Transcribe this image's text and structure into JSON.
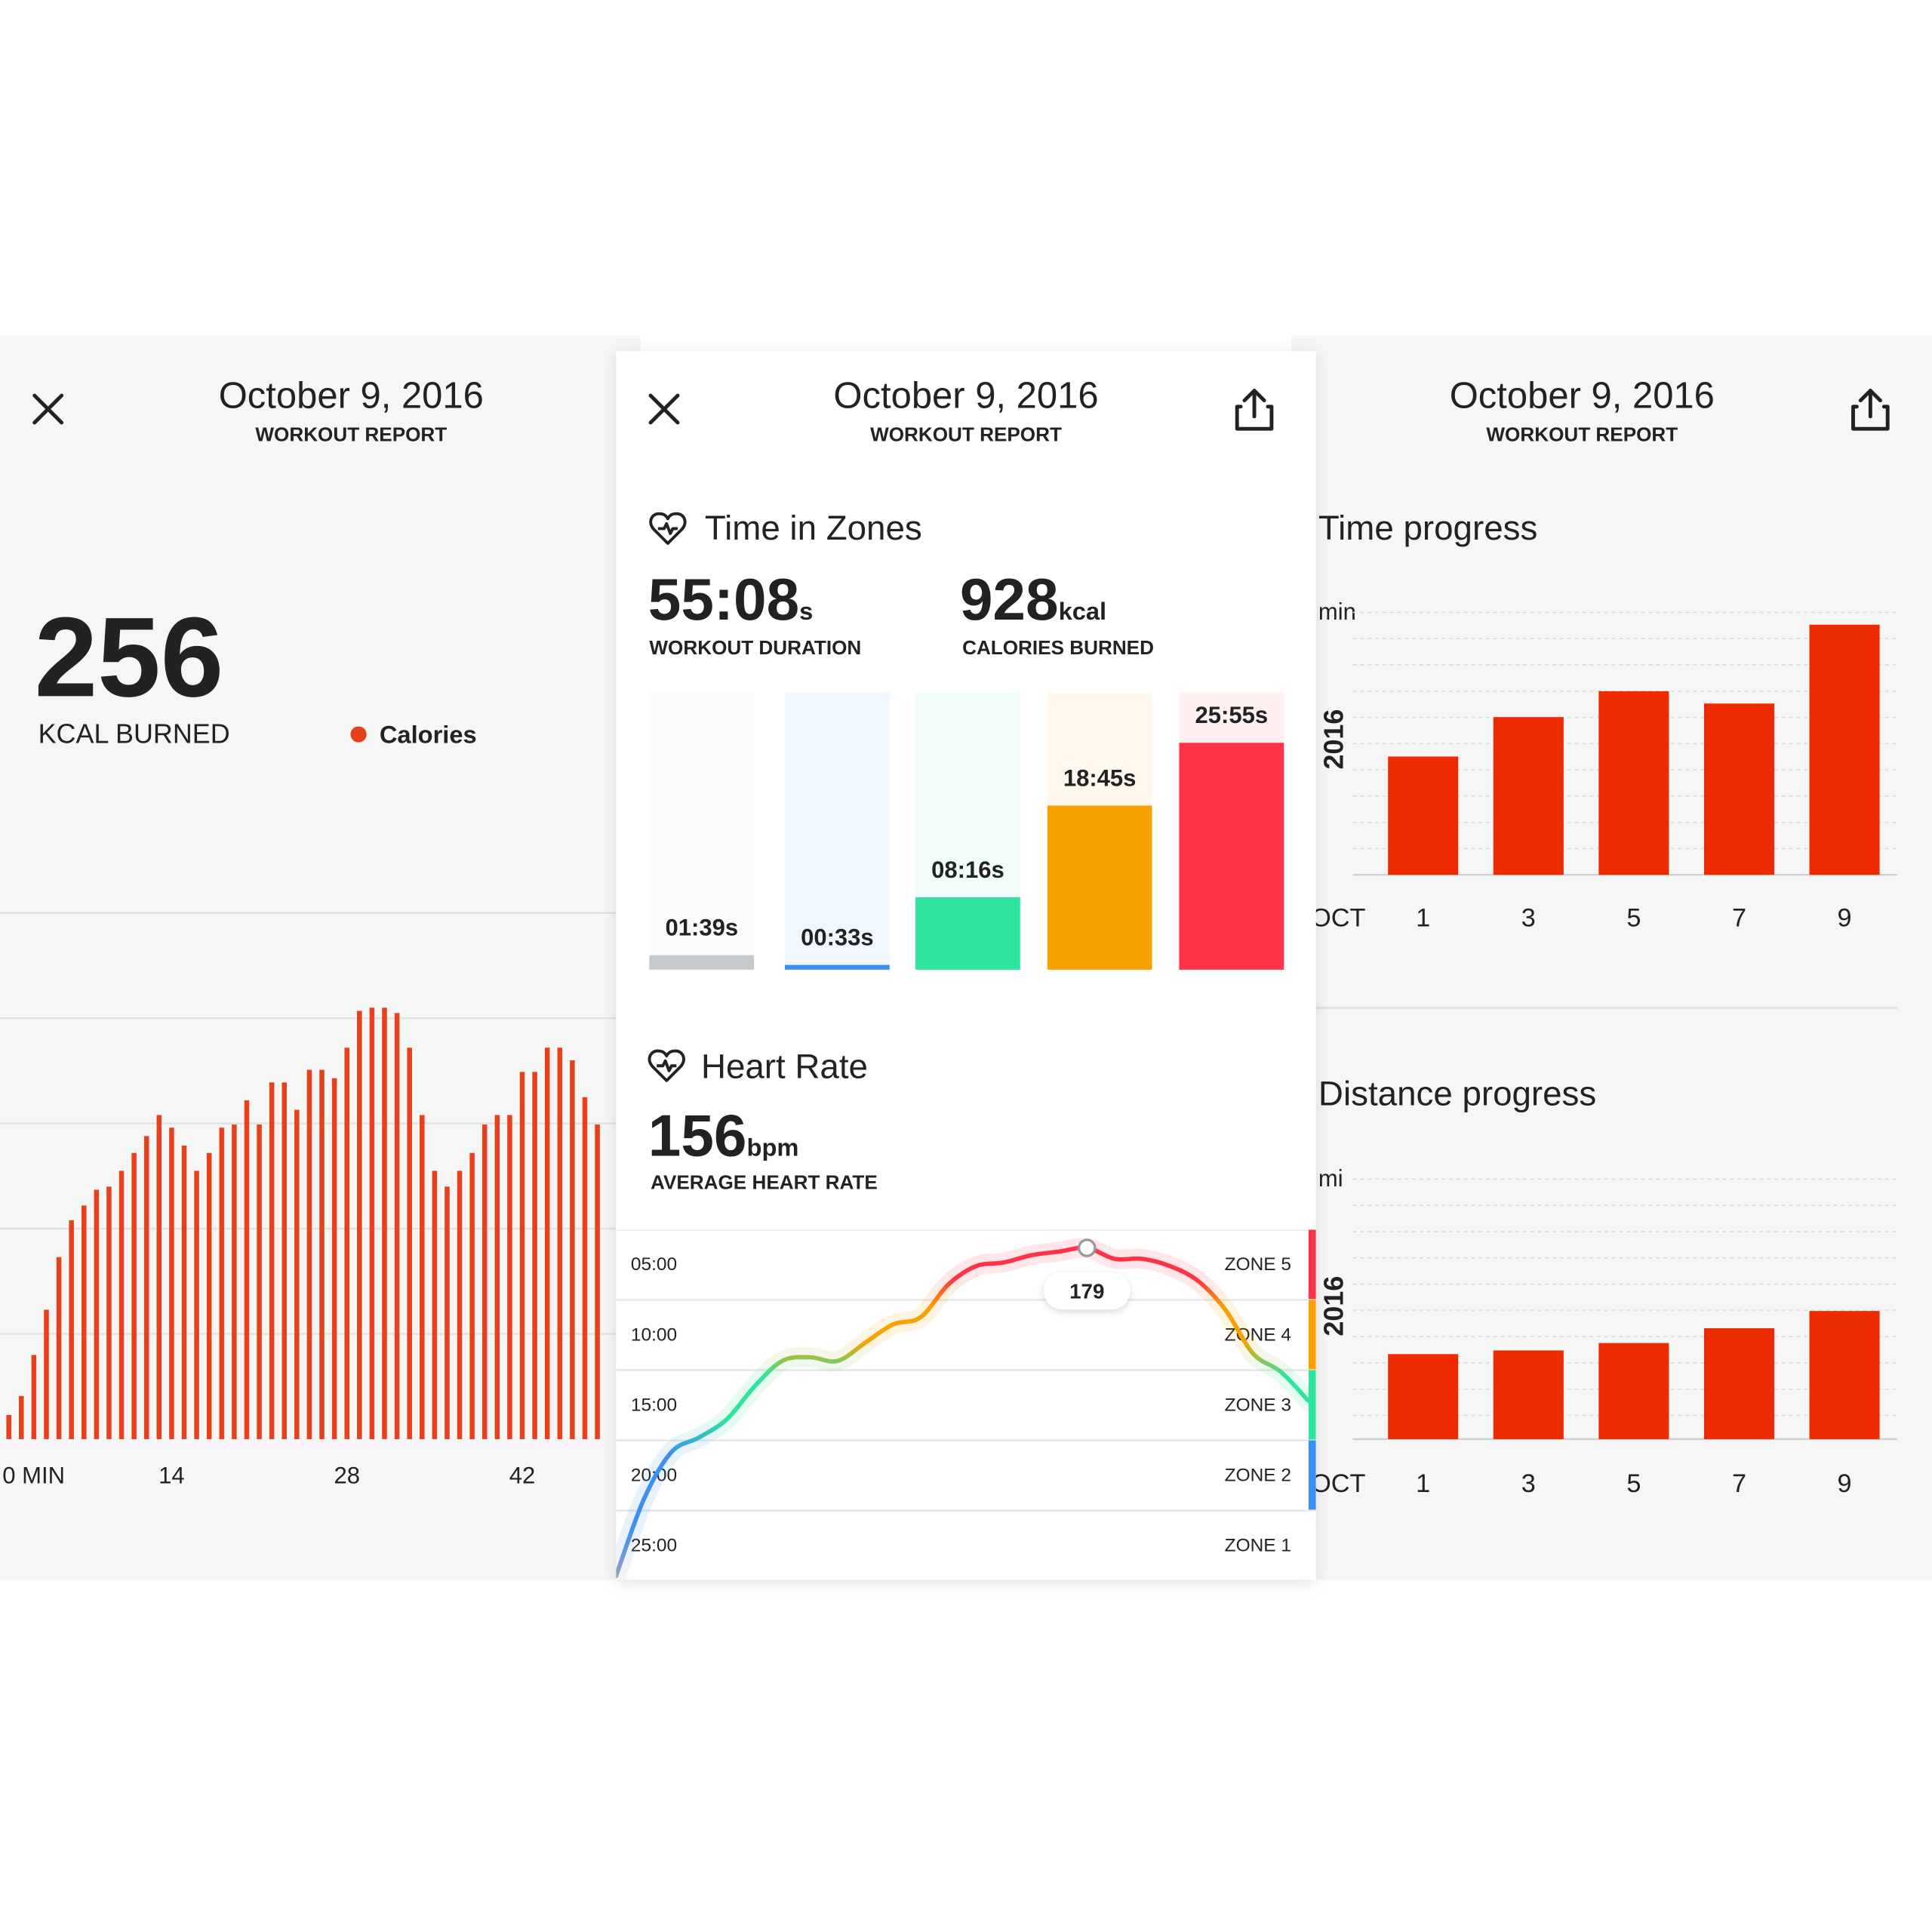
{
  "left": {
    "date": "October 9, 2016",
    "subtitle": "WORKOUT REPORT",
    "total": "256",
    "total_label": "KCAL BURNED",
    "chart": {
      "type": "bar",
      "series": [
        {
          "name": "Calories",
          "color": "#e8401c",
          "values": [
            23,
            41,
            80,
            123,
            173,
            208,
            222,
            237,
            240,
            255,
            272,
            288,
            308,
            296,
            279,
            255,
            272,
            296,
            299,
            322,
            299,
            339,
            339,
            313,
            351,
            351,
            343,
            372,
            407,
            410,
            410,
            405,
            372,
            308,
            255,
            240,
            255,
            272,
            299,
            308,
            308,
            349,
            349,
            372,
            372,
            360,
            325,
            299
          ]
        }
      ],
      "x": [
        1,
        2,
        3,
        4,
        5,
        6,
        7,
        8,
        9,
        10,
        11,
        12,
        13,
        14,
        15,
        16,
        17,
        18,
        19,
        20,
        21,
        22,
        23,
        24,
        25,
        26,
        27,
        28,
        29,
        30,
        31,
        32,
        33,
        34,
        35,
        36,
        37,
        38,
        39,
        40,
        41,
        42,
        43,
        44,
        45,
        46,
        47,
        48
      ],
      "xlim": [
        0,
        49
      ],
      "xticks": [
        {
          "value": 0,
          "label": "0 MIN"
        },
        14,
        28,
        42
      ],
      "ylim": [
        0,
        500
      ],
      "grid": [
        100,
        200,
        300,
        400,
        500
      ]
    }
  },
  "center": {
    "date": "October 9, 2016",
    "subtitle": "WORKOUT REPORT",
    "zones_title": "Time in Zones",
    "duration": {
      "value": "55:08",
      "unit": "s",
      "label": "WORKOUT DURATION"
    },
    "calories": {
      "value": "928",
      "unit": "kcal",
      "label": "CALORIES BURNED"
    },
    "zones_chart": {
      "type": "bar",
      "values": [
        99,
        33,
        496,
        1125,
        1555
      ],
      "value_labels": [
        "01:39s",
        "00:33s",
        "08:16s",
        "18:45s",
        "25:55s"
      ],
      "colors": [
        "#c6c9cd",
        "#3d8ff0",
        "#2ee59d",
        "#f7a200",
        "#ff3347"
      ],
      "label_colors": [
        "#8a8d91",
        "#3d8ff0",
        "#2ee59d",
        "#f7a200",
        "#ff3347"
      ],
      "ylim": [
        0,
        1900
      ]
    },
    "heart_title": "Heart Rate",
    "heart_rate": {
      "value": "156",
      "unit": "bpm",
      "label": "AVERAGE HEART RATE"
    },
    "heart_chart": {
      "type": "line",
      "values": [
        89,
        110,
        123,
        127,
        132,
        141,
        148,
        149,
        148,
        153,
        158,
        160,
        169,
        174,
        175,
        177,
        178,
        179,
        176,
        176,
        174,
        170,
        162,
        150,
        145,
        137
      ],
      "ylim": [
        88,
        184
      ],
      "rows": [
        {
          "time": "05:00",
          "zone": "ZONE 5",
          "color": "#ff3347"
        },
        {
          "time": "10:00",
          "zone": "ZONE 4",
          "color": "#f7a200"
        },
        {
          "time": "15:00",
          "zone": "ZONE 3",
          "color": "#2ee59d"
        },
        {
          "time": "20:00",
          "zone": "ZONE 2",
          "color": "#3d8ff0"
        },
        {
          "time": "25:00",
          "zone": "ZONE 1"
        }
      ]
    }
  },
  "right": {
    "date": "October 9, 2016",
    "subtitle": "WORKOUT REPORT",
    "charts": [
      {
        "type": "bar",
        "title": "Time progress",
        "unit": "min",
        "year": "2016",
        "month": "OCT",
        "categories": [
          "1",
          "3",
          "5",
          "7",
          "9"
        ],
        "values": [
          96,
          128,
          149,
          139,
          203
        ],
        "color": "#ee2a00",
        "ylim": [
          0,
          213
        ]
      },
      {
        "type": "bar",
        "title": "Distance progress",
        "unit": "mi",
        "year": "2016",
        "month": "OCT",
        "categories": [
          "1",
          "3",
          "5",
          "7",
          "9"
        ],
        "values": [
          69,
          72,
          78,
          90,
          104
        ],
        "color": "#ee2a00",
        "ylim": [
          0,
          211
        ]
      }
    ]
  }
}
